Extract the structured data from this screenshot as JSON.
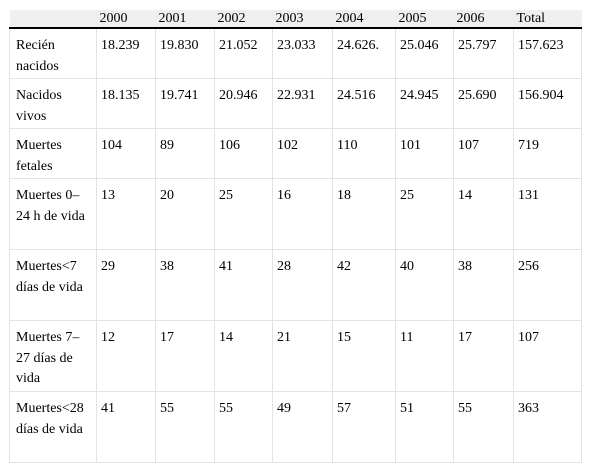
{
  "table": {
    "columns": [
      "",
      "2000",
      "2001",
      "2002",
      "2003",
      "2004",
      "2005",
      "2006",
      "Total"
    ],
    "rows": [
      {
        "label": "Recién nacidos",
        "values": [
          "18.239",
          "19.830",
          "21.052",
          "23.033",
          "24.626.",
          "25.046",
          "25.797",
          "157.623"
        ]
      },
      {
        "label": "Nacidos vivos",
        "values": [
          "18.135",
          "19.741",
          "20.946",
          "22.931",
          "24.516",
          "24.945",
          "25.690",
          "156.904"
        ]
      },
      {
        "label": "Muertes fetales",
        "values": [
          "104",
          "89",
          "106",
          "102",
          "110",
          "101",
          "107",
          "719"
        ]
      },
      {
        "label": "Muertes 0–24 h de vida",
        "values": [
          "13",
          "20",
          "25",
          "16",
          "18",
          "25",
          "14",
          "131"
        ]
      },
      {
        "label": "Muertes<7 días de vida",
        "values": [
          "29",
          "38",
          "41",
          "28",
          "42",
          "40",
          "38",
          "256"
        ]
      },
      {
        "label": "Muertes 7–27 días de vida",
        "values": [
          "12",
          "17",
          "14",
          "21",
          "15",
          "11",
          "17",
          "107"
        ]
      },
      {
        "label": "Muertes<28 días de vida",
        "values": [
          "41",
          "55",
          "55",
          "49",
          "57",
          "51",
          "55",
          "363"
        ]
      }
    ]
  }
}
